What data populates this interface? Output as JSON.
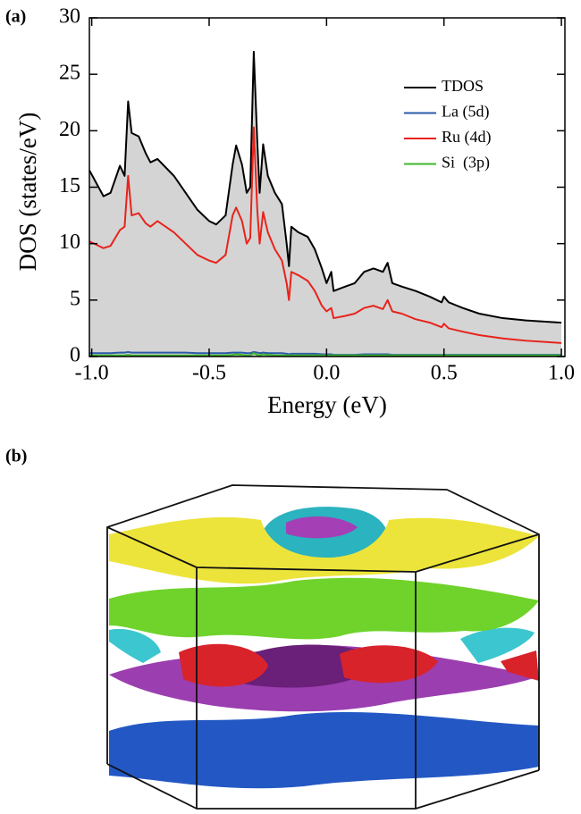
{
  "panel_labels": [
    "(a)",
    "(b)"
  ],
  "chart_data": {
    "type": "line",
    "xlabel": "Energy (eV)",
    "ylabel": "DOS (states/eV)",
    "xlim": [
      -1.01,
      1.015
    ],
    "ylim": [
      0,
      30
    ],
    "xticks": [
      {
        "value": -1,
        "label": "-1.0"
      },
      -0.5,
      {
        "value": 0,
        "label": "0.0"
      },
      0.5,
      {
        "value": 1,
        "label": "1.0"
      }
    ],
    "yticks": [
      0,
      5,
      10,
      15,
      20,
      25,
      30
    ],
    "legend": "upper right",
    "x": [
      -1.01,
      -0.95,
      -0.92,
      -0.88,
      -0.86,
      -0.845,
      -0.83,
      -0.8,
      -0.77,
      -0.75,
      -0.72,
      -0.65,
      -0.6,
      -0.55,
      -0.5,
      -0.47,
      -0.43,
      -0.4,
      -0.385,
      -0.36,
      -0.34,
      -0.325,
      -0.31,
      -0.295,
      -0.285,
      -0.27,
      -0.25,
      -0.22,
      -0.19,
      -0.17,
      -0.16,
      -0.15,
      -0.12,
      -0.08,
      -0.05,
      -0.02,
      0.0,
      0.02,
      0.03,
      0.08,
      0.12,
      0.16,
      0.2,
      0.24,
      0.26,
      0.28,
      0.32,
      0.38,
      0.44,
      0.49,
      0.5,
      0.52,
      0.58,
      0.65,
      0.75,
      0.85,
      1.0
    ],
    "series": [
      {
        "name": "TDOS",
        "color": "#000000",
        "fill": "#d4d4d4",
        "values": [
          16.5,
          14.2,
          14.5,
          16.9,
          16.0,
          22.6,
          19.8,
          19.5,
          18.0,
          17.2,
          17.5,
          16.0,
          14.5,
          13.0,
          12.0,
          11.7,
          12.5,
          17.0,
          18.7,
          17.0,
          14.5,
          15.0,
          27.0,
          19.0,
          14.5,
          18.8,
          16.0,
          14.5,
          13.5,
          10.0,
          8.0,
          11.5,
          11.0,
          10.6,
          9.5,
          7.8,
          6.5,
          7.5,
          5.8,
          6.2,
          6.5,
          7.5,
          7.8,
          7.5,
          8.3,
          6.5,
          6.2,
          5.8,
          5.3,
          4.8,
          5.3,
          4.8,
          4.3,
          3.8,
          3.4,
          3.2,
          3.0
        ]
      },
      {
        "name": "La (5d)",
        "color": "#2a5aa8",
        "values": [
          0.3,
          0.3,
          0.3,
          0.35,
          0.35,
          0.4,
          0.35,
          0.35,
          0.35,
          0.35,
          0.35,
          0.35,
          0.35,
          0.3,
          0.3,
          0.3,
          0.3,
          0.35,
          0.35,
          0.35,
          0.3,
          0.3,
          0.4,
          0.35,
          0.3,
          0.35,
          0.3,
          0.3,
          0.3,
          0.25,
          0.2,
          0.25,
          0.25,
          0.25,
          0.25,
          0.2,
          0.2,
          0.2,
          0.15,
          0.15,
          0.15,
          0.2,
          0.2,
          0.2,
          0.2,
          0.15,
          0.15,
          0.15,
          0.15,
          0.15,
          0.15,
          0.15,
          0.15,
          0.15,
          0.15,
          0.15,
          0.15
        ]
      },
      {
        "name": "Ru (4d)",
        "color": "#e8231c",
        "values": [
          10.2,
          9.6,
          9.8,
          11.2,
          11.5,
          16.0,
          12.5,
          12.7,
          11.8,
          11.5,
          12.0,
          11.0,
          10.0,
          9.0,
          8.5,
          8.3,
          9.0,
          12.5,
          13.2,
          12.0,
          10.0,
          10.5,
          20.3,
          13.0,
          10.0,
          12.8,
          11.0,
          9.5,
          8.5,
          6.5,
          5.0,
          7.5,
          7.2,
          6.7,
          5.8,
          4.5,
          4.0,
          4.3,
          3.4,
          3.6,
          3.8,
          4.3,
          4.5,
          4.2,
          5.0,
          4.0,
          3.8,
          3.3,
          3.0,
          2.6,
          2.9,
          2.5,
          2.2,
          1.9,
          1.6,
          1.4,
          1.2
        ]
      },
      {
        "name": "Si  (3p)",
        "color": "#3cb82a",
        "values": [
          0.1,
          0.1,
          0.1,
          0.1,
          0.1,
          0.15,
          0.1,
          0.1,
          0.1,
          0.1,
          0.1,
          0.1,
          0.1,
          0.1,
          0.1,
          0.1,
          0.1,
          0.15,
          0.2,
          0.15,
          0.1,
          0.1,
          0.3,
          0.15,
          0.1,
          0.2,
          0.15,
          0.1,
          0.1,
          0.1,
          0.1,
          0.1,
          0.1,
          0.1,
          0.1,
          0.1,
          0.1,
          0.1,
          0.1,
          0.1,
          0.1,
          0.1,
          0.1,
          0.1,
          0.1,
          0.1,
          0.1,
          0.1,
          0.1,
          0.1,
          0.1,
          0.1,
          0.1,
          0.1,
          0.1,
          0.1,
          0.1
        ]
      }
    ]
  }
}
